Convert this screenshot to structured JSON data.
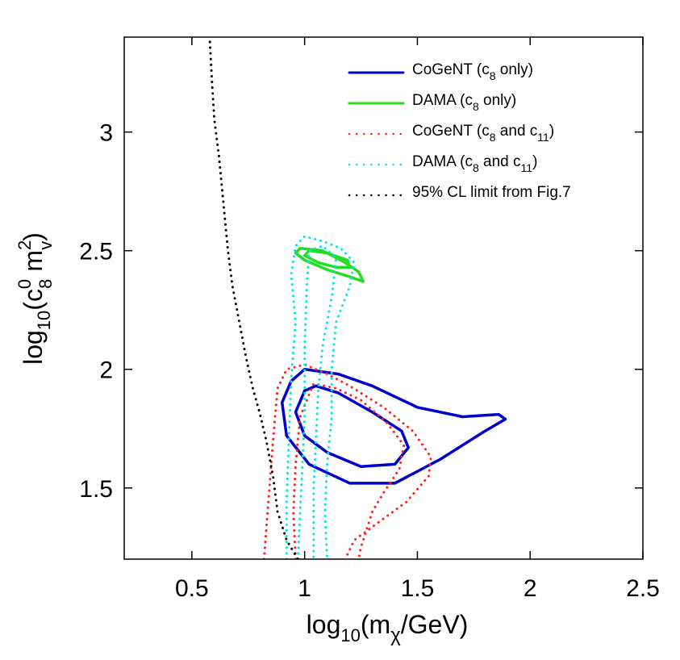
{
  "chart_data": {
    "type": "line",
    "xlabel": {
      "base": "log",
      "sub1": "10",
      "open": "(m",
      "sub2": "χ",
      "close": "/GeV)"
    },
    "ylabel": {
      "base": "log",
      "sub1": "10",
      "open": "(c",
      "sup1": "0",
      "sub2": "8",
      "mid": " m",
      "sup2": "2",
      "sub3": "v",
      "close": ")"
    },
    "xlim": [
      0.2,
      2.5
    ],
    "ylim": [
      1.2,
      3.4
    ],
    "x_ticks": [
      0.5,
      1,
      1.5,
      2,
      2.5
    ],
    "x_tick_labels": [
      "0.5",
      "1",
      "1.5",
      "2",
      "2.5"
    ],
    "y_ticks": [
      1.5,
      2,
      2.5,
      3
    ],
    "y_tick_labels": [
      "1.5",
      "2",
      "2.5",
      "3"
    ],
    "legend": {
      "position": "top-right",
      "entries": [
        {
          "pre": "CoGeNT (c",
          "sub": "8",
          "post": " only)",
          "mid": "",
          "sub2": "",
          "post2": ""
        },
        {
          "pre": "DAMA (c",
          "sub": "8",
          "post": " only)",
          "mid": "",
          "sub2": "",
          "post2": ""
        },
        {
          "pre": "CoGeNT (c",
          "sub": "8",
          "post": " and c",
          "sub2": "11",
          "post2": ")"
        },
        {
          "pre": "DAMA (c",
          "sub": "8",
          "post": " and c",
          "sub2": "11",
          "post2": ")"
        },
        {
          "pre": "95% CL limit from Fig.7",
          "sub": "",
          "post": "",
          "sub2": "",
          "post2": ""
        }
      ]
    },
    "series": [
      {
        "name": "CoGeNT (c8 only)",
        "color": "#0000cc",
        "style": "solid",
        "contours": [
          [
            [
              0.94,
              1.95
            ],
            [
              0.9,
              1.86
            ],
            [
              0.92,
              1.72
            ],
            [
              1.02,
              1.6
            ],
            [
              1.2,
              1.52
            ],
            [
              1.4,
              1.52
            ],
            [
              1.6,
              1.62
            ],
            [
              1.8,
              1.74
            ],
            [
              1.89,
              1.79
            ],
            [
              1.86,
              1.81
            ],
            [
              1.7,
              1.8
            ],
            [
              1.5,
              1.84
            ],
            [
              1.3,
              1.93
            ],
            [
              1.15,
              1.98
            ],
            [
              1.0,
              2.0
            ],
            [
              0.94,
              1.95
            ]
          ],
          [
            [
              1.0,
              1.91
            ],
            [
              0.96,
              1.82
            ],
            [
              1.0,
              1.72
            ],
            [
              1.1,
              1.65
            ],
            [
              1.25,
              1.59
            ],
            [
              1.4,
              1.6
            ],
            [
              1.46,
              1.67
            ],
            [
              1.43,
              1.74
            ],
            [
              1.3,
              1.82
            ],
            [
              1.15,
              1.9
            ],
            [
              1.05,
              1.93
            ],
            [
              1.0,
              1.91
            ]
          ]
        ]
      },
      {
        "name": "DAMA (c8 only)",
        "color": "#22dd22",
        "style": "solid",
        "contours": [
          [
            [
              0.96,
              2.49
            ],
            [
              1.0,
              2.46
            ],
            [
              1.1,
              2.42
            ],
            [
              1.2,
              2.39
            ],
            [
              1.26,
              2.37
            ],
            [
              1.24,
              2.41
            ],
            [
              1.18,
              2.45
            ],
            [
              1.08,
              2.5
            ],
            [
              0.98,
              2.51
            ],
            [
              0.96,
              2.49
            ]
          ],
          [
            [
              1.0,
              2.48
            ],
            [
              1.06,
              2.45
            ],
            [
              1.14,
              2.43
            ],
            [
              1.2,
              2.43
            ],
            [
              1.19,
              2.46
            ],
            [
              1.1,
              2.49
            ],
            [
              1.02,
              2.5
            ],
            [
              1.0,
              2.48
            ]
          ]
        ]
      },
      {
        "name": "CoGeNT (c8 and c11)",
        "color": "#ff2222",
        "style": "dotted",
        "contours": [
          [
            [
              0.82,
              1.2
            ],
            [
              0.84,
              1.45
            ],
            [
              0.86,
              1.7
            ],
            [
              0.88,
              1.92
            ],
            [
              0.92,
              2.0
            ],
            [
              1.0,
              2.02
            ],
            [
              1.1,
              1.98
            ],
            [
              1.2,
              1.93
            ],
            [
              1.35,
              1.84
            ],
            [
              1.48,
              1.74
            ],
            [
              1.56,
              1.63
            ],
            [
              1.55,
              1.55
            ],
            [
              1.45,
              1.44
            ],
            [
              1.32,
              1.35
            ],
            [
              1.22,
              1.28
            ],
            [
              1.18,
              1.2
            ]
          ],
          [
            [
              0.96,
              1.2
            ],
            [
              0.95,
              1.4
            ],
            [
              0.96,
              1.6
            ],
            [
              0.98,
              1.8
            ],
            [
              1.04,
              1.94
            ],
            [
              1.14,
              1.92
            ],
            [
              1.25,
              1.87
            ],
            [
              1.36,
              1.78
            ],
            [
              1.44,
              1.68
            ],
            [
              1.42,
              1.58
            ],
            [
              1.35,
              1.48
            ],
            [
              1.3,
              1.4
            ],
            [
              1.25,
              1.25
            ],
            [
              1.24,
              1.2
            ]
          ]
        ]
      },
      {
        "name": "DAMA (c8 and c11)",
        "color": "#00e5ee",
        "style": "dotted",
        "contours": [
          [
            [
              0.92,
              1.2
            ],
            [
              0.92,
              1.45
            ],
            [
              0.93,
              1.7
            ],
            [
              0.94,
              1.95
            ],
            [
              0.96,
              2.2
            ],
            [
              0.94,
              2.4
            ],
            [
              0.96,
              2.52
            ],
            [
              1.0,
              2.56
            ],
            [
              1.08,
              2.54
            ],
            [
              1.16,
              2.51
            ],
            [
              1.22,
              2.45
            ],
            [
              1.2,
              2.35
            ],
            [
              1.14,
              2.2
            ],
            [
              1.12,
              2.0
            ],
            [
              1.12,
              1.8
            ],
            [
              1.1,
              1.6
            ],
            [
              1.09,
              1.4
            ],
            [
              1.1,
              1.2
            ]
          ],
          [
            [
              0.97,
              1.2
            ],
            [
              0.98,
              1.4
            ],
            [
              0.99,
              1.6
            ],
            [
              1.0,
              1.8
            ],
            [
              1.0,
              2.1
            ],
            [
              1.01,
              2.35
            ],
            [
              1.02,
              2.5
            ],
            [
              1.08,
              2.52
            ],
            [
              1.14,
              2.47
            ],
            [
              1.12,
              2.3
            ],
            [
              1.08,
              2.1
            ],
            [
              1.06,
              1.9
            ],
            [
              1.05,
              1.7
            ],
            [
              1.04,
              1.5
            ],
            [
              1.04,
              1.3
            ],
            [
              1.04,
              1.2
            ]
          ]
        ]
      },
      {
        "name": "95% CL limit from Fig.7",
        "color": "#000000",
        "style": "dotted",
        "contours": [
          [
            [
              0.58,
              3.38
            ],
            [
              0.59,
              3.2
            ],
            [
              0.6,
              3.05
            ],
            [
              0.62,
              2.9
            ],
            [
              0.64,
              2.7
            ],
            [
              0.66,
              2.5
            ],
            [
              0.68,
              2.35
            ],
            [
              0.71,
              2.2
            ],
            [
              0.74,
              2.05
            ],
            [
              0.77,
              1.92
            ],
            [
              0.8,
              1.82
            ],
            [
              0.83,
              1.7
            ],
            [
              0.86,
              1.55
            ],
            [
              0.88,
              1.4
            ],
            [
              0.92,
              1.28
            ],
            [
              0.97,
              1.2
            ]
          ]
        ]
      }
    ]
  }
}
